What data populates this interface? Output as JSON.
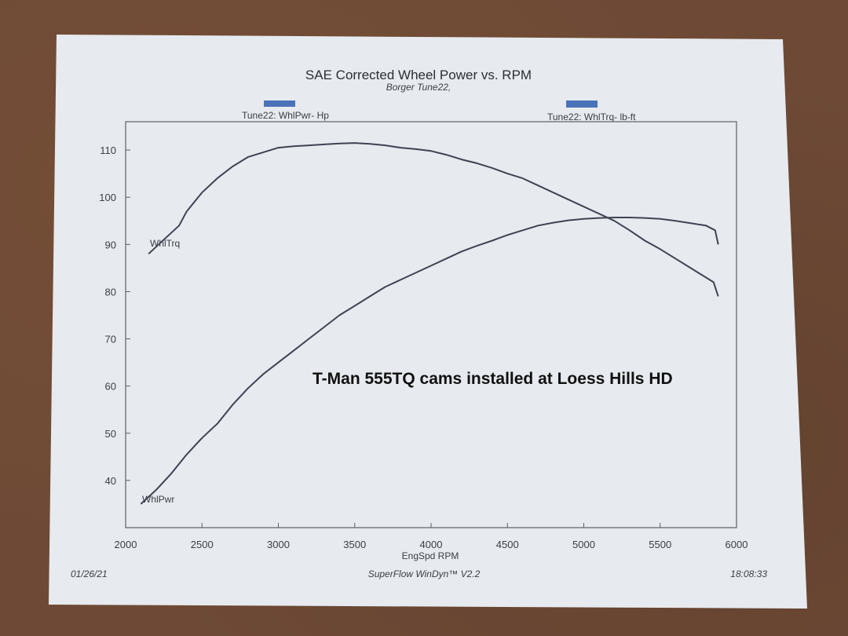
{
  "chart_data": {
    "type": "line",
    "title": "SAE Corrected Wheel Power vs. RPM",
    "subtitle": "Borger Tune22,",
    "xlabel": "EngSpd  RPM",
    "ylabel": "",
    "xlim": [
      2000,
      6000
    ],
    "ylim": [
      30,
      116
    ],
    "x_ticks": [
      2000,
      2500,
      3000,
      3500,
      4000,
      4500,
      5000,
      5500,
      6000
    ],
    "y_ticks": [
      40,
      50,
      60,
      70,
      80,
      90,
      100,
      110
    ],
    "grid": false,
    "legend": [
      {
        "label": "Tune22: WhlPwr- Hp",
        "color": "#4a72b8",
        "placement": "top-left"
      },
      {
        "label": "Tune22: WhlTrq- lb-ft",
        "color": "#4a72b8",
        "placement": "top-right"
      }
    ],
    "series": [
      {
        "name": "WhlTrq",
        "color": "#3e4352",
        "x": [
          2150,
          2250,
          2350,
          2400,
          2500,
          2600,
          2700,
          2800,
          2900,
          3000,
          3100,
          3200,
          3300,
          3400,
          3500,
          3600,
          3700,
          3800,
          3900,
          4000,
          4100,
          4200,
          4300,
          4400,
          4500,
          4600,
          4700,
          4800,
          4900,
          5000,
          5100,
          5200,
          5300,
          5400,
          5500,
          5600,
          5700,
          5800,
          5850,
          5880
        ],
        "values": [
          88,
          91,
          94,
          97,
          101,
          104,
          106.5,
          108.5,
          109.5,
          110.5,
          110.8,
          111,
          111.2,
          111.4,
          111.5,
          111.3,
          111,
          110.5,
          110.2,
          109.8,
          109,
          108,
          107.2,
          106.2,
          105,
          104,
          102.5,
          101,
          99.5,
          98,
          96.5,
          95,
          93,
          90.8,
          89,
          87,
          85,
          83,
          82,
          79
        ]
      },
      {
        "name": "WhlPwr",
        "color": "#3e4352",
        "x": [
          2100,
          2200,
          2300,
          2400,
          2500,
          2600,
          2700,
          2800,
          2900,
          3000,
          3100,
          3200,
          3300,
          3400,
          3500,
          3600,
          3700,
          3800,
          3900,
          4000,
          4100,
          4200,
          4300,
          4400,
          4500,
          4600,
          4700,
          4800,
          4900,
          5000,
          5100,
          5200,
          5300,
          5400,
          5500,
          5600,
          5700,
          5800,
          5860,
          5880
        ],
        "values": [
          35,
          38,
          41.5,
          45.5,
          49,
          52,
          56,
          59.5,
          62.5,
          65,
          67.5,
          70,
          72.5,
          75,
          77,
          79,
          81,
          82.5,
          84,
          85.5,
          87,
          88.5,
          89.7,
          90.8,
          92,
          93,
          94,
          94.6,
          95.1,
          95.4,
          95.6,
          95.7,
          95.7,
          95.6,
          95.4,
          95,
          94.5,
          94,
          93,
          90
        ]
      }
    ],
    "annotations": [
      "T-Man 555TQ cams installed at Loess Hills HD"
    ]
  },
  "footer": {
    "date": "01/26/21",
    "software": "SuperFlow WinDyn™ V2.2",
    "time": "18:08:33"
  }
}
